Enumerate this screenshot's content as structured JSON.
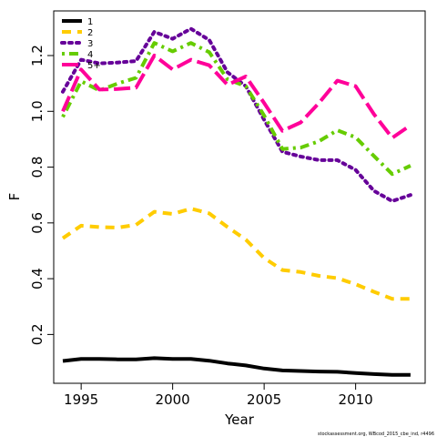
{
  "chart_data": {
    "type": "line",
    "xlabel": "Year",
    "ylabel": "F",
    "xlim": [
      1993.5,
      2013.8
    ],
    "ylim": [
      0.025,
      1.36
    ],
    "xticks": [
      1995,
      2000,
      2005,
      2010
    ],
    "yticks": [
      0.2,
      0.4,
      0.6,
      0.8,
      1.0,
      1.2
    ],
    "xtick_labels": [
      "1995",
      "2000",
      "2005",
      "2010"
    ],
    "ytick_labels": [
      "0.2",
      "0.4",
      "0.6",
      "0.8",
      "1.0",
      "1.2"
    ],
    "grid": false,
    "legend_position": "top-left",
    "x": [
      1994,
      1995,
      1996,
      1997,
      1998,
      1999,
      2000,
      2001,
      2002,
      2003,
      2004,
      2005,
      2006,
      2007,
      2008,
      2009,
      2010,
      2011,
      2012,
      2013
    ],
    "series": [
      {
        "name": "1",
        "color": "#000000",
        "dash": "solid",
        "values": [
          0.105,
          0.112,
          0.112,
          0.111,
          0.111,
          0.115,
          0.112,
          0.112,
          0.106,
          0.096,
          0.089,
          0.078,
          0.071,
          0.069,
          0.067,
          0.066,
          0.062,
          0.058,
          0.055,
          0.055
        ]
      },
      {
        "name": "2",
        "color": "#FFCC00",
        "dash": "dashed",
        "values": [
          0.545,
          0.59,
          0.585,
          0.583,
          0.593,
          0.64,
          0.632,
          0.651,
          0.634,
          0.585,
          0.54,
          0.474,
          0.431,
          0.424,
          0.41,
          0.402,
          0.38,
          0.353,
          0.328,
          0.328
        ]
      },
      {
        "name": "3",
        "color": "#660099",
        "dash": "dotted",
        "values": [
          1.07,
          1.185,
          1.172,
          1.175,
          1.18,
          1.285,
          1.26,
          1.296,
          1.256,
          1.14,
          1.09,
          0.97,
          0.855,
          0.838,
          0.825,
          0.825,
          0.79,
          0.715,
          0.678,
          0.7
        ]
      },
      {
        "name": "4",
        "color": "#66CC00",
        "dash": "dotdash",
        "values": [
          0.98,
          1.108,
          1.075,
          1.1,
          1.12,
          1.245,
          1.215,
          1.245,
          1.212,
          1.115,
          1.09,
          0.985,
          0.865,
          0.87,
          0.893,
          0.932,
          0.907,
          0.84,
          0.775,
          0.805
        ]
      },
      {
        "name": "5+",
        "color": "#FF0099",
        "dash": "longdash",
        "values": [
          1.0,
          1.15,
          1.078,
          1.08,
          1.085,
          1.2,
          1.15,
          1.185,
          1.165,
          1.095,
          1.125,
          1.03,
          0.93,
          0.96,
          1.03,
          1.11,
          1.09,
          0.99,
          0.905,
          0.95
        ]
      }
    ]
  },
  "credit_text": "stockassessment.org, WBcod_2015_cbe_ind, r4496"
}
